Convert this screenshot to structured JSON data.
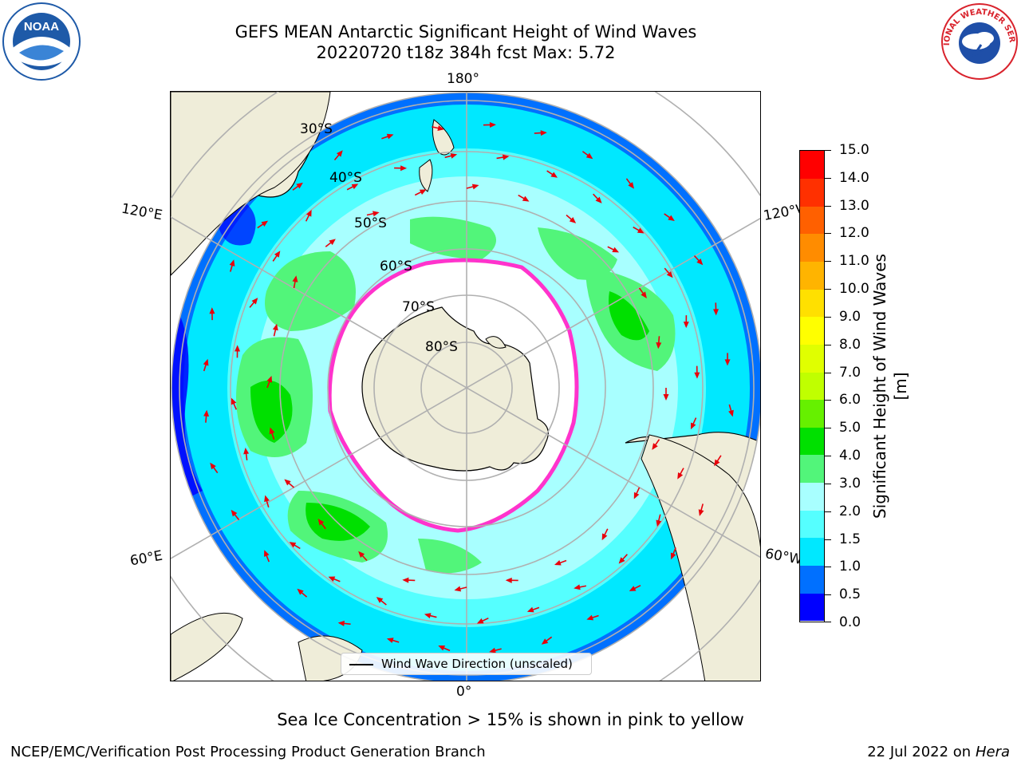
{
  "header": {
    "title_line1": "GEFS MEAN Antarctic Significant Height of Wind Waves",
    "title_line2": "20220720 t18z 384h fcst   Max: 5.72"
  },
  "logos": {
    "left": {
      "text": "NOAA",
      "ring_text": "NATIONAL OCEANIC AND ATMOSPHERIC ADMINISTRATION · U.S. DEPARTMENT OF COMMERCE",
      "color": "#1e5aa8",
      "icon": "noaa-logo"
    },
    "right": {
      "text": "NATIONAL WEATHER SERVICE",
      "color": "#d9232d",
      "icon": "nws-logo"
    }
  },
  "map": {
    "projection": "south-polar-stereographic",
    "longitude_labels": {
      "top": "180°",
      "left_upper": "120°E",
      "right_upper": "120°W",
      "left_lower": "60°E",
      "right_lower": "60°W",
      "bottom": "0°"
    },
    "latitude_labels": [
      "30°S",
      "40°S",
      "50°S",
      "60°S",
      "70°S",
      "80°S"
    ],
    "colors": {
      "land": "#efedd9",
      "coast": "#000000",
      "grid": "#b0b0b0",
      "arrow": "#e8000b",
      "ice_edge": "#ff33cc"
    },
    "legend": "Wind Wave Direction (unscaled)"
  },
  "colorbar": {
    "title": "Significant Height of Wind Waves [m]",
    "ticks": [
      "0.0",
      "0.5",
      "1.0",
      "1.5",
      "2.0",
      "3.0",
      "4.0",
      "5.0",
      "6.0",
      "7.0",
      "8.0",
      "9.0",
      "10.0",
      "11.0",
      "12.0",
      "13.0",
      "14.0",
      "15.0"
    ],
    "colors": [
      "#0000ff",
      "#0070ff",
      "#00e8ff",
      "#55ffff",
      "#a8ffff",
      "#52f57a",
      "#00e000",
      "#66f000",
      "#c0ff00",
      "#e0ff00",
      "#ffff00",
      "#ffe000",
      "#ffb400",
      "#ff8c00",
      "#ff6000",
      "#ff3000",
      "#ff0000"
    ]
  },
  "footnote": "Sea Ice Concentration > 15% is shown in pink to yellow",
  "footer": {
    "left": "NCEP/EMC/Verification Post Processing Product Generation Branch",
    "right_prefix": "22 Jul 2022 on ",
    "right_host": "Hera"
  }
}
